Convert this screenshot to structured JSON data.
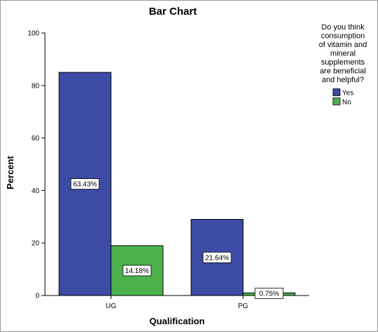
{
  "chart_data": {
    "type": "bar",
    "title": "Bar Chart",
    "xlabel": "Qualification",
    "ylabel": "Percent",
    "categories": [
      "UG",
      "PG"
    ],
    "series": [
      {
        "name": "Yes",
        "values": [
          85,
          29
        ],
        "labels": [
          "63.43%",
          "21.64%"
        ],
        "color": "#3c4ba6"
      },
      {
        "name": "No",
        "values": [
          19,
          1
        ],
        "labels": [
          "14.18%",
          "0.75%"
        ],
        "color": "#4bb24b"
      }
    ],
    "ylim": [
      0,
      100
    ],
    "yticks": [
      0,
      20,
      40,
      60,
      80,
      100
    ],
    "grid": false,
    "legend": {
      "placement": "top-right",
      "title": [
        "Do you think",
        "consumption",
        "of vitamin and",
        "mineral",
        "supplements",
        "are beneficial",
        "and helpful?"
      ]
    }
  }
}
